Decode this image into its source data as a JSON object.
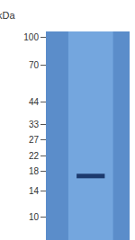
{
  "chart_data": {
    "type": "western_blot",
    "ylabel": "kDa",
    "ylim": [
      7.5,
      108
    ],
    "yticks": [
      100,
      70,
      44,
      33,
      27,
      22,
      18,
      14,
      10
    ],
    "log": "y",
    "bands": [
      17
    ],
    "color": "#1c3a6e",
    "tick_labels": "y"
  }
}
